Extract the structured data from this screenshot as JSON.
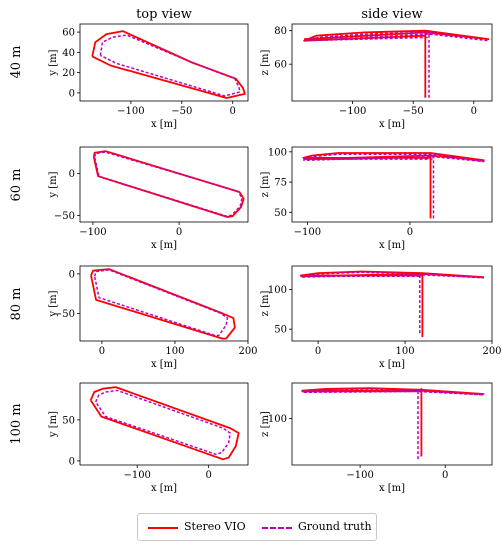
{
  "column_titles": [
    "top view",
    "side view"
  ],
  "row_labels": [
    "40 m",
    "60 m",
    "80 m",
    "100 m"
  ],
  "legend": {
    "items": [
      {
        "label": "Stereo VIO",
        "color": "#ff0000",
        "style": "solid"
      },
      {
        "label": "Ground truth",
        "color": "#bf00bf",
        "style": "dashed"
      }
    ]
  },
  "colors": {
    "vio": "#ff0000",
    "gt": "#bf00bf"
  },
  "chart_data": [
    {
      "type": "line",
      "view": "top",
      "row": "40 m",
      "xlabel": "x [m]",
      "ylabel": "y [m]",
      "xlim": [
        -150,
        15
      ],
      "ylim": [
        -8,
        68
      ],
      "xticks": [
        -100,
        -50,
        0
      ],
      "yticks": [
        0,
        20,
        40,
        60
      ],
      "series": [
        {
          "name": "Stereo VIO",
          "x": [
            -138,
            -135,
            -124,
            -108,
            -40,
            3,
            10,
            12,
            -6,
            -120,
            -138
          ],
          "y": [
            36,
            50,
            58,
            61,
            30,
            14,
            5,
            -1,
            -5,
            27,
            36
          ]
        },
        {
          "name": "Ground truth",
          "x": [
            -130,
            -128,
            -118,
            -104,
            -40,
            2,
            6,
            7,
            -8,
            -114,
            -130
          ],
          "y": [
            37,
            50,
            55,
            57,
            30,
            14,
            6,
            1,
            -3,
            29,
            37
          ]
        }
      ]
    },
    {
      "type": "line",
      "view": "side",
      "row": "40 m",
      "xlabel": "x [m]",
      "ylabel": "z [m]",
      "xlim": [
        -150,
        15
      ],
      "ylim": [
        38,
        84
      ],
      "xticks": [
        -100,
        -50,
        0
      ],
      "yticks": [
        60,
        80
      ],
      "series": [
        {
          "name": "Stereo VIO",
          "x": [
            -40,
            -40,
            -40,
            -140,
            -130,
            -90,
            -40,
            12,
            -40,
            -140
          ],
          "y": [
            40,
            80,
            77,
            74,
            77,
            79,
            80,
            75,
            79,
            75
          ]
        },
        {
          "name": "Ground truth",
          "x": [
            -37,
            -37,
            -37,
            -140,
            -128,
            -88,
            -37,
            12,
            -37,
            -140
          ],
          "y": [
            40,
            80,
            76,
            74,
            76,
            78,
            79,
            74,
            78,
            74
          ]
        }
      ]
    },
    {
      "type": "line",
      "view": "top",
      "row": "60 m",
      "xlabel": "x [m]",
      "ylabel": "y [m]",
      "xlim": [
        -115,
        80
      ],
      "ylim": [
        -58,
        32
      ],
      "xticks": [
        -100,
        0
      ],
      "yticks": [
        -50,
        0
      ],
      "series": [
        {
          "name": "Stereo VIO",
          "x": [
            -99,
            -98,
            -92,
            -85,
            70,
            75,
            72,
            62,
            56,
            -94,
            -99
          ],
          "y": [
            20,
            25,
            26,
            27,
            -22,
            -30,
            -40,
            -51,
            -52,
            -3,
            20
          ]
        },
        {
          "name": "Ground truth",
          "x": [
            -98,
            -97,
            -92,
            -86,
            68,
            73,
            71,
            61,
            55,
            -93,
            -98
          ],
          "y": [
            20,
            24,
            25,
            26,
            -21,
            -29,
            -39,
            -50,
            -51,
            -3,
            20
          ]
        }
      ]
    },
    {
      "type": "line",
      "view": "side",
      "row": "60 m",
      "xlabel": "x [m]",
      "ylabel": "z [m]",
      "xlim": [
        -115,
        80
      ],
      "ylim": [
        42,
        104
      ],
      "xticks": [
        -100,
        0
      ],
      "yticks": [
        50,
        75,
        100
      ],
      "series": [
        {
          "name": "Stereo VIO",
          "x": [
            20,
            20,
            20,
            -104,
            -95,
            -70,
            20,
            72,
            20,
            -104
          ],
          "y": [
            45,
            97,
            95,
            95,
            97,
            99,
            99,
            93,
            97,
            94
          ]
        },
        {
          "name": "Ground truth",
          "x": [
            23,
            23,
            23,
            -104,
            -95,
            -70,
            23,
            72,
            23,
            -104
          ],
          "y": [
            45,
            96,
            94,
            94,
            96,
            98,
            98,
            92,
            96,
            93
          ]
        }
      ]
    },
    {
      "type": "line",
      "view": "top",
      "row": "80 m",
      "xlabel": "x [m]",
      "ylabel": "y [m]",
      "xlim": [
        -30,
        200
      ],
      "ylim": [
        -85,
        10
      ],
      "xticks": [
        0,
        100,
        200
      ],
      "yticks": [
        -50,
        0
      ],
      "series": [
        {
          "name": "Stereo VIO",
          "x": [
            -15,
            -12,
            -2,
            10,
            165,
            180,
            182,
            170,
            165,
            -8,
            -15
          ],
          "y": [
            -2,
            4,
            5,
            6,
            -50,
            -56,
            -68,
            -82,
            -82,
            -33,
            -2
          ]
        },
        {
          "name": "Ground truth",
          "x": [
            -10,
            -8,
            0,
            10,
            163,
            172,
            170,
            160,
            155,
            -4,
            -10
          ],
          "y": [
            -3,
            3,
            4,
            5,
            -50,
            -56,
            -65,
            -78,
            -78,
            -30,
            -3
          ]
        }
      ]
    },
    {
      "type": "line",
      "view": "side",
      "row": "80 m",
      "xlabel": "x [m]",
      "ylabel": "z [m]",
      "xlim": [
        -30,
        200
      ],
      "ylim": [
        35,
        130
      ],
      "xticks": [
        0,
        100,
        200
      ],
      "yticks": [
        50,
        100
      ],
      "series": [
        {
          "name": "Stereo VIO",
          "x": [
            120,
            120,
            120,
            -20,
            0,
            50,
            120,
            190,
            120,
            -20
          ],
          "y": [
            40,
            120,
            118,
            118,
            121,
            123,
            121,
            116,
            120,
            117
          ]
        },
        {
          "name": "Ground truth",
          "x": [
            117,
            117,
            117,
            -20,
            0,
            50,
            117,
            190,
            117,
            -20
          ],
          "y": [
            45,
            119,
            117,
            117,
            120,
            122,
            120,
            115,
            119,
            116
          ]
        }
      ]
    },
    {
      "type": "line",
      "view": "top",
      "row": "100 m",
      "xlabel": "x [m]",
      "ylabel": "y [m]",
      "xlim": [
        -180,
        55
      ],
      "ylim": [
        -5,
        95
      ],
      "xticks": [
        -100,
        0
      ],
      "yticks": [
        0,
        50
      ],
      "series": [
        {
          "name": "Stereo VIO",
          "x": [
            -165,
            -160,
            -148,
            -130,
            30,
            42,
            38,
            28,
            20,
            -150,
            -165
          ],
          "y": [
            74,
            84,
            88,
            90,
            40,
            34,
            18,
            4,
            2,
            54,
            74
          ]
        },
        {
          "name": "Ground truth",
          "x": [
            -158,
            -154,
            -144,
            -128,
            20,
            30,
            28,
            18,
            10,
            -144,
            -158
          ],
          "y": [
            72,
            80,
            84,
            86,
            40,
            34,
            22,
            10,
            8,
            54,
            72
          ]
        }
      ]
    },
    {
      "type": "line",
      "view": "side",
      "row": "100 m",
      "xlabel": "x [m]",
      "ylabel": "z [m]",
      "xlim": [
        -180,
        55
      ],
      "ylim": [
        45,
        142
      ],
      "xticks": [
        -100,
        0
      ],
      "yticks": [
        100
      ],
      "series": [
        {
          "name": "Stereo VIO",
          "x": [
            -28,
            -28,
            -28,
            -168,
            -140,
            -90,
            -28,
            45,
            -28,
            -168
          ],
          "y": [
            55,
            135,
            133,
            133,
            135,
            136,
            134,
            129,
            133,
            132
          ]
        },
        {
          "name": "Ground truth",
          "x": [
            -32,
            -32,
            -32,
            -168,
            -140,
            -90,
            -32,
            45,
            -32,
            -168
          ],
          "y": [
            52,
            134,
            132,
            132,
            134,
            135,
            133,
            128,
            132,
            131
          ]
        }
      ]
    }
  ]
}
